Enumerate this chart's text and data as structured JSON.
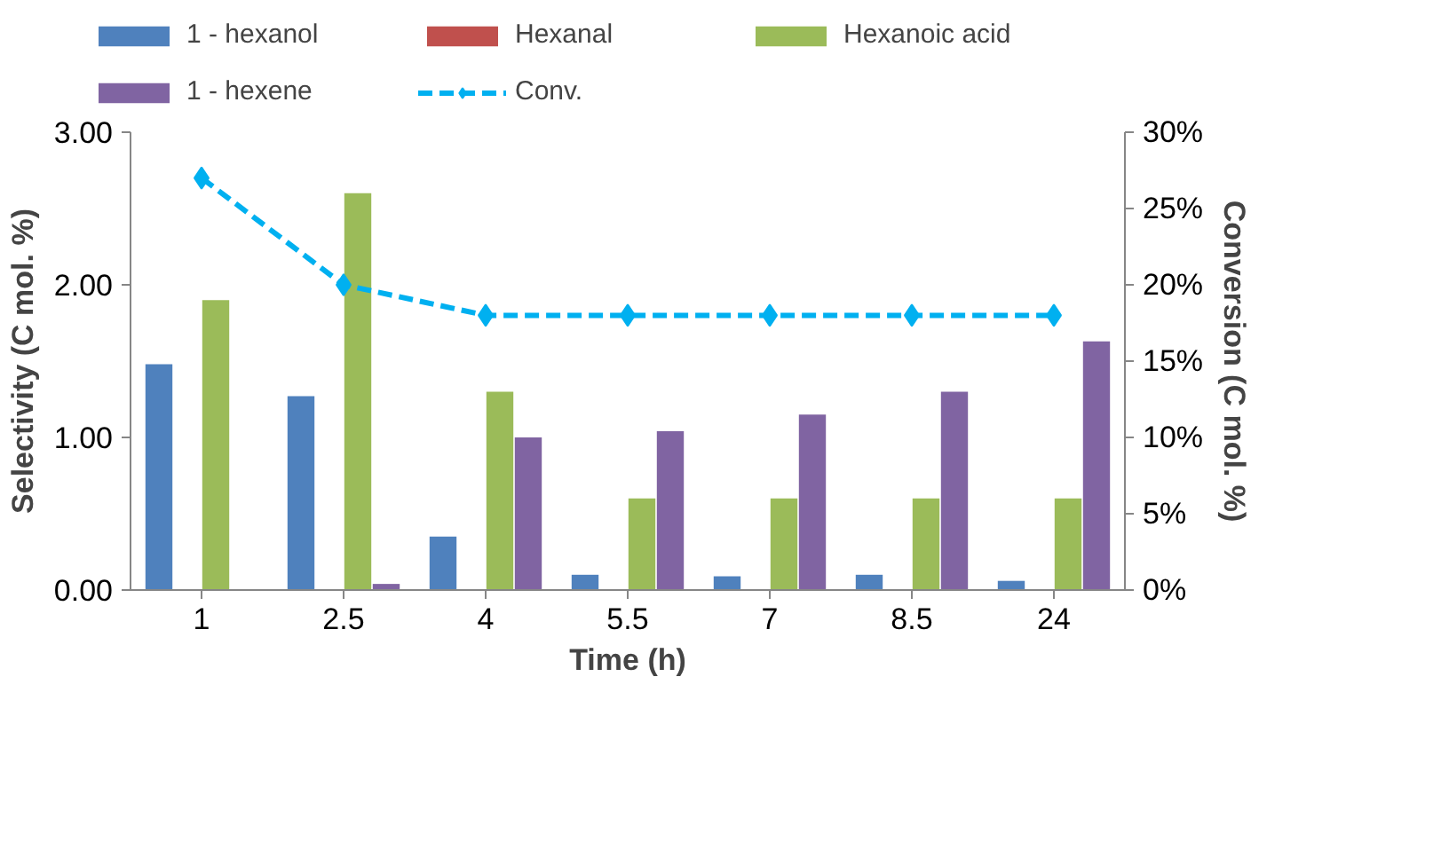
{
  "chart_data": {
    "type": "bar",
    "xlabel": "Time (h)",
    "ylabel": "Selectivity (C mol. %)",
    "y2label": "Conversion (C mol. %)",
    "categories": [
      "1",
      "2.5",
      "4",
      "5.5",
      "7",
      "8.5",
      "24"
    ],
    "series": [
      {
        "name": "1 - hexanol",
        "color": "#4f81bd",
        "values": [
          1.48,
          1.27,
          0.35,
          0.1,
          0.09,
          0.1,
          0.06
        ]
      },
      {
        "name": "Hexanal",
        "color": "#c0504d",
        "values": [
          0,
          0,
          0,
          0,
          0,
          0,
          0
        ]
      },
      {
        "name": "Hexanoic acid",
        "color": "#9bbb59",
        "values": [
          1.9,
          2.6,
          1.3,
          0.6,
          0.6,
          0.6,
          0.6
        ]
      },
      {
        "name": "1 - hexene",
        "color": "#8064a2",
        "values": [
          0,
          0.04,
          1.0,
          1.04,
          1.15,
          1.3,
          1.63
        ]
      },
      {
        "name": "Conv.",
        "type": "line",
        "axis": "y2",
        "color": "#00b0f0",
        "marker": "diamond",
        "line_style": "dashed",
        "values": [
          27,
          20,
          18,
          18,
          18,
          18,
          18
        ]
      }
    ],
    "ylim": [
      0,
      3
    ],
    "yticks": [
      {
        "value": 0,
        "label": "0.00"
      },
      {
        "value": 1,
        "label": "1.00"
      },
      {
        "value": 2,
        "label": "2.00"
      },
      {
        "value": 3,
        "label": "3.00"
      }
    ],
    "y2lim": [
      0,
      30
    ],
    "y2ticks": [
      {
        "value": 0,
        "label": "0%"
      },
      {
        "value": 5,
        "label": "5%"
      },
      {
        "value": 10,
        "label": "10%"
      },
      {
        "value": 15,
        "label": "15%"
      },
      {
        "value": 20,
        "label": "20%"
      },
      {
        "value": 25,
        "label": "25%"
      },
      {
        "value": 30,
        "label": "30%"
      }
    ],
    "grid": false,
    "legend": "top"
  }
}
